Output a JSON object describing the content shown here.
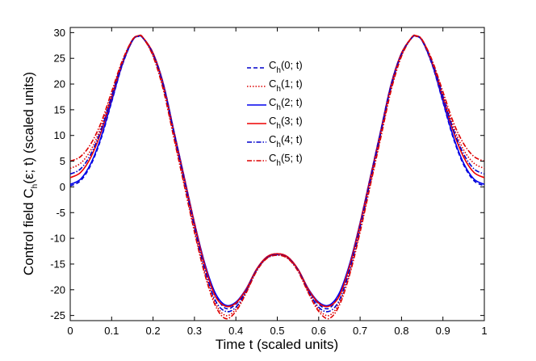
{
  "chart_data": {
    "type": "line",
    "title": "",
    "xlabel": "Time t (scaled units)",
    "ylabel_prefix": "Control field C",
    "ylabel_sub": "h",
    "ylabel_suffix": "(ε; t) (scaled units)",
    "xlim": [
      0,
      1
    ],
    "ylim": [
      -26,
      31
    ],
    "x_ticks": [
      0,
      0.1,
      0.2,
      0.3,
      0.4,
      0.5,
      0.6,
      0.7,
      0.8,
      0.9,
      1
    ],
    "x_tick_labels": [
      "0",
      "0.1",
      "0.2",
      "0.3",
      "0.4",
      "0.5",
      "0.6",
      "0.7",
      "0.8",
      "0.9",
      "1"
    ],
    "y_ticks": [
      -25,
      -20,
      -15,
      -10,
      -5,
      0,
      5,
      10,
      15,
      20,
      25,
      30
    ],
    "y_tick_labels": [
      "-25",
      "-20",
      "-15",
      "-10",
      "-5",
      "0",
      "5",
      "10",
      "15",
      "20",
      "25",
      "30"
    ],
    "grid": false,
    "legend_position": "upper-center",
    "x": [
      0,
      0.025,
      0.05,
      0.075,
      0.1,
      0.125,
      0.15,
      0.165,
      0.175,
      0.2,
      0.225,
      0.25,
      0.275,
      0.3,
      0.325,
      0.35,
      0.375,
      0.4,
      0.425,
      0.45,
      0.475,
      0.5,
      0.525,
      0.55,
      0.575,
      0.6,
      0.625,
      0.65,
      0.675,
      0.7,
      0.725,
      0.75,
      0.775,
      0.8,
      0.825,
      0.835,
      0.85,
      0.875,
      0.9,
      0.925,
      0.95,
      0.975,
      1
    ],
    "series": [
      {
        "name_prefix": "C",
        "name_sub": "h",
        "name_suffix": "(0; t)",
        "color": "#0000cc",
        "dash": "5,3",
        "values": [
          0.2,
          1.2,
          4.3,
          9.5,
          16.5,
          23.5,
          28.4,
          29.3,
          29.0,
          26.0,
          20.0,
          11.0,
          2.0,
          -7.0,
          -15.0,
          -20.8,
          -23.6,
          -22.8,
          -20.0,
          -16.2,
          -13.8,
          -13.2,
          -13.8,
          -16.2,
          -20.0,
          -22.8,
          -23.6,
          -20.8,
          -15.0,
          -7.0,
          2.0,
          11.0,
          20.0,
          26.0,
          29.0,
          29.3,
          28.4,
          23.5,
          16.5,
          9.5,
          4.3,
          1.2,
          0.2
        ]
      },
      {
        "name_prefix": "C",
        "name_sub": "h",
        "name_suffix": "(1; t)",
        "color": "#dd0000",
        "dash": "1.5,2",
        "values": [
          3.6,
          4.6,
          7.2,
          11.8,
          18.0,
          24.2,
          28.6,
          29.3,
          29.0,
          25.6,
          19.2,
          10.0,
          0.8,
          -8.4,
          -16.6,
          -22.5,
          -25.0,
          -23.8,
          -20.4,
          -16.2,
          -13.8,
          -13.2,
          -13.8,
          -16.2,
          -20.4,
          -23.8,
          -25.0,
          -22.5,
          -16.6,
          -8.4,
          0.8,
          10.0,
          19.2,
          25.6,
          29.0,
          29.3,
          28.6,
          24.2,
          18.0,
          11.8,
          7.2,
          4.6,
          3.6
        ]
      },
      {
        "name_prefix": "C",
        "name_sub": "h",
        "name_suffix": "(2; t)",
        "color": "#0000ee",
        "dash": "",
        "values": [
          0.5,
          1.5,
          4.6,
          9.8,
          16.7,
          23.6,
          28.4,
          29.3,
          29.0,
          26.0,
          20.0,
          11.0,
          2.0,
          -7.0,
          -14.9,
          -20.6,
          -23.0,
          -22.4,
          -19.8,
          -16.0,
          -13.6,
          -13.0,
          -13.6,
          -16.0,
          -19.8,
          -22.4,
          -23.0,
          -20.6,
          -14.9,
          -7.0,
          2.0,
          11.0,
          20.0,
          26.0,
          29.0,
          29.3,
          28.4,
          23.6,
          16.7,
          9.8,
          4.6,
          1.5,
          0.5
        ]
      },
      {
        "name_prefix": "C",
        "name_sub": "h",
        "name_suffix": "(3; t)",
        "color": "#ee0000",
        "dash": "",
        "values": [
          1.8,
          2.8,
          5.8,
          10.8,
          17.4,
          23.9,
          28.5,
          29.4,
          29.1,
          26.0,
          19.8,
          10.8,
          1.8,
          -7.2,
          -15.3,
          -21.2,
          -23.2,
          -22.6,
          -19.9,
          -16.0,
          -13.6,
          -13.0,
          -13.6,
          -16.0,
          -19.9,
          -22.6,
          -23.2,
          -21.2,
          -15.3,
          -7.2,
          1.8,
          10.8,
          19.8,
          26.0,
          29.1,
          29.4,
          28.5,
          23.9,
          17.4,
          10.8,
          5.8,
          2.8,
          1.8
        ]
      },
      {
        "name_prefix": "C",
        "name_sub": "h",
        "name_suffix": "(4; t)",
        "color": "#0000cc",
        "dash": "6,2,1.5,2",
        "values": [
          2.5,
          3.5,
          6.4,
          11.2,
          17.6,
          24.0,
          28.5,
          29.3,
          29.0,
          25.8,
          19.6,
          10.6,
          1.4,
          -7.8,
          -16.0,
          -22.0,
          -24.2,
          -23.4,
          -20.2,
          -16.2,
          -13.8,
          -13.2,
          -13.8,
          -16.2,
          -20.2,
          -23.4,
          -24.2,
          -22.0,
          -16.0,
          -7.8,
          1.4,
          10.6,
          19.6,
          25.8,
          29.0,
          29.3,
          28.5,
          24.0,
          17.6,
          11.2,
          6.4,
          3.5,
          2.5
        ]
      },
      {
        "name_prefix": "C",
        "name_sub": "h",
        "name_suffix": "(5; t)",
        "color": "#dd0000",
        "dash": "6,2,1.5,2",
        "values": [
          5.0,
          5.9,
          8.4,
          12.6,
          18.5,
          24.4,
          28.6,
          29.3,
          29.1,
          25.4,
          18.8,
          9.6,
          0.4,
          -8.8,
          -17.0,
          -23.0,
          -25.6,
          -24.2,
          -20.6,
          -16.4,
          -13.9,
          -13.3,
          -13.9,
          -16.4,
          -20.6,
          -24.2,
          -25.6,
          -23.0,
          -17.0,
          -8.8,
          0.4,
          9.6,
          18.8,
          25.4,
          29.1,
          29.3,
          28.6,
          24.4,
          18.5,
          12.6,
          8.4,
          5.9,
          5.0
        ]
      }
    ]
  }
}
